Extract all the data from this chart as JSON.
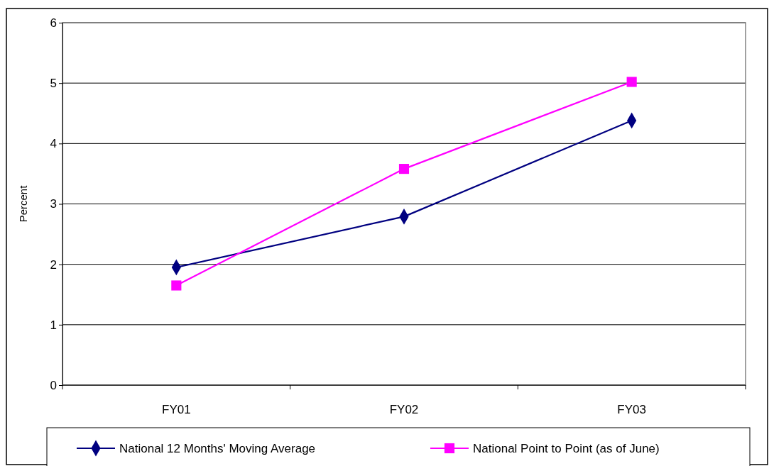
{
  "chart_data": {
    "type": "line",
    "ylabel": "Percent",
    "categories": [
      "FY01",
      "FY02",
      "FY03"
    ],
    "series": [
      {
        "name": "National  12 Months' Moving Average",
        "color": "#000080",
        "marker": "diamond",
        "values": [
          1.95,
          2.79,
          4.38
        ]
      },
      {
        "name": "National  Point to Point (as of June)",
        "color": "#ff00ff",
        "marker": "square",
        "values": [
          1.65,
          3.58,
          5.02
        ]
      }
    ],
    "ylim": [
      0,
      6
    ],
    "yticks": [
      0,
      1,
      2,
      3,
      4,
      5,
      6
    ],
    "grid": "y",
    "legend": "bottom"
  }
}
